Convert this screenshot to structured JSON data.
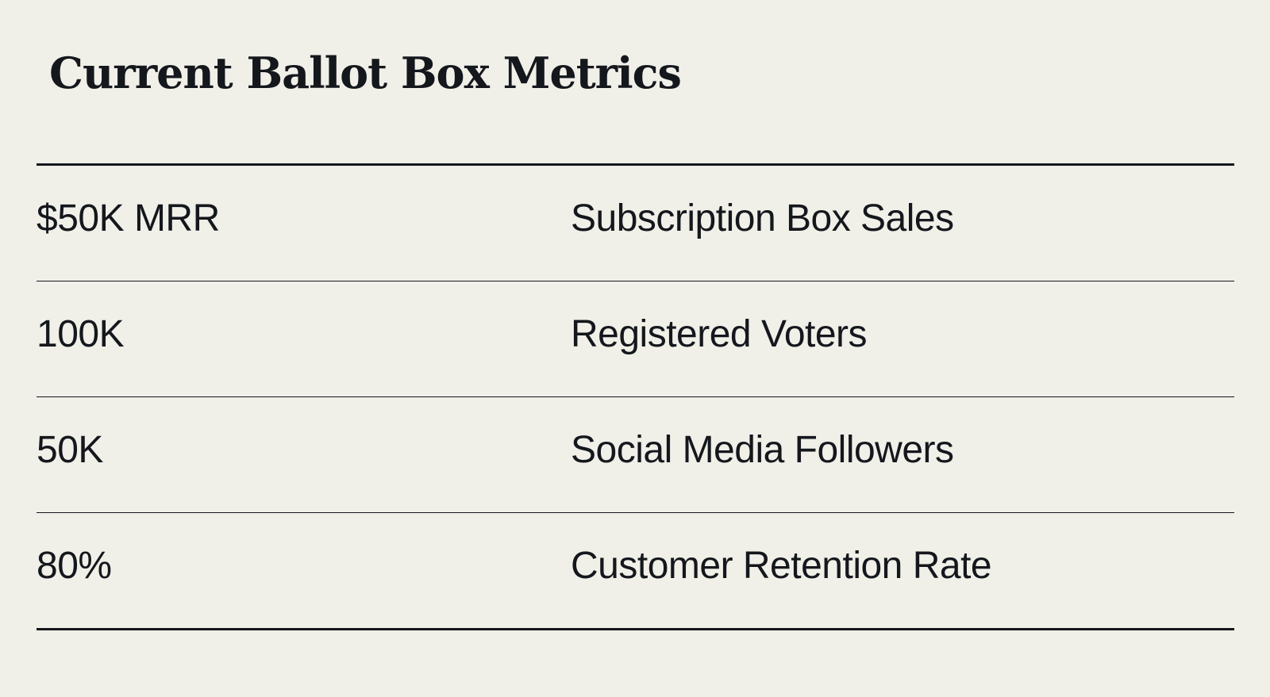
{
  "page": {
    "title": "Current Ballot Box Metrics"
  },
  "metrics": [
    {
      "value": "$50K MRR",
      "label": "Subscription Box Sales"
    },
    {
      "value": "100K",
      "label": "Registered Voters"
    },
    {
      "value": "50K",
      "label": "Social Media Followers"
    },
    {
      "value": "80%",
      "label": "Customer Retention Rate"
    }
  ]
}
